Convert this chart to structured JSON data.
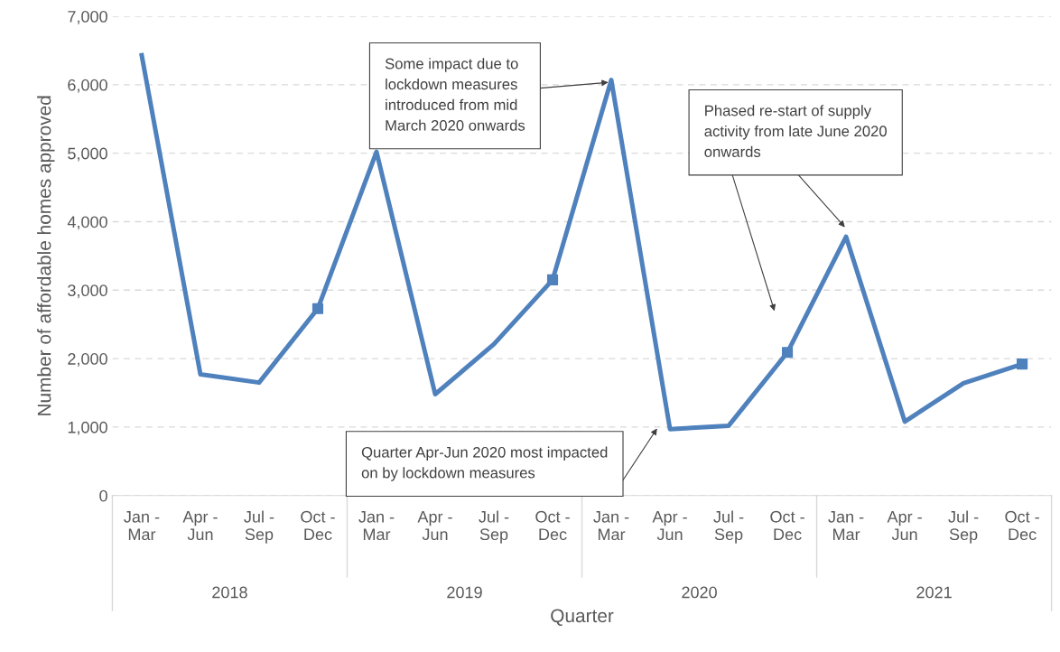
{
  "chart_data": {
    "type": "line",
    "xlabel": "Quarter",
    "ylabel": "Number of affordable homes approved",
    "categories": [
      "Jan -\nMar",
      "Apr -\nJun",
      "Jul -\nSep",
      "Oct -\nDec",
      "Jan -\nMar",
      "Apr -\nJun",
      "Jul -\nSep",
      "Oct -\nDec",
      "Jan -\nMar",
      "Apr -\nJun",
      "Jul -\nSep",
      "Oct -\nDec",
      "Jan -\nMar",
      "Apr -\nJun",
      "Jul -\nSep",
      "Oct -\nDec"
    ],
    "series": [
      {
        "color": "#4f81bd",
        "values": [
          6430,
          1770,
          1650,
          2730,
          5020,
          1480,
          2210,
          3150,
          6070,
          970,
          1020,
          2090,
          3780,
          1080,
          1640,
          1920
        ]
      },
      {
        "type": "scatter",
        "marker": "square",
        "color": "#4f81bd",
        "values": [
          null,
          null,
          null,
          2730,
          null,
          null,
          null,
          3150,
          null,
          null,
          null,
          2090,
          null,
          null,
          null,
          1920
        ]
      }
    ],
    "ylim": [
      0,
      7000
    ],
    "yticks": [
      {
        "value": 0,
        "label": "0"
      },
      {
        "value": 1000,
        "label": "1,000"
      },
      {
        "value": 2000,
        "label": "2,000"
      },
      {
        "value": 3000,
        "label": "3,000"
      },
      {
        "value": 4000,
        "label": "4,000"
      },
      {
        "value": 5000,
        "label": "5,000"
      },
      {
        "value": 6000,
        "label": "6,000"
      },
      {
        "value": 7000,
        "label": "7,000"
      }
    ],
    "grid": "y",
    "annotations": [
      "2018",
      "2019",
      "2020",
      "2021",
      "Some impact due to\nlockdown measures\nintroduced from mid\nMarch 2020 onwards",
      "Phased re-start of supply\nactivity from late June 2020\nonwards",
      "Quarter Apr-Jun 2020 most impacted\non by lockdown measures"
    ]
  }
}
